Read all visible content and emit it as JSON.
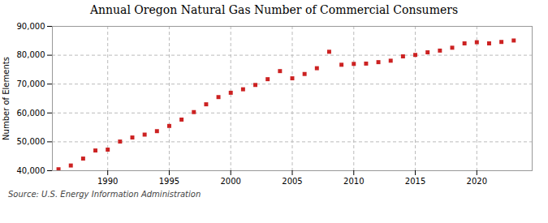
{
  "chart_data": {
    "type": "scatter",
    "title": "Annual Oregon Natural Gas Number of Commercial Consumers",
    "ylabel": "Number of Elements",
    "source": "Source: U.S. Energy Information Administration",
    "x": [
      1986,
      1987,
      1988,
      1989,
      1990,
      1991,
      1992,
      1993,
      1994,
      1995,
      1996,
      1997,
      1998,
      1999,
      2000,
      2001,
      2002,
      2003,
      2004,
      2005,
      2006,
      2007,
      2008,
      2009,
      2010,
      2011,
      2012,
      2013,
      2014,
      2015,
      2016,
      2017,
      2018,
      2019,
      2020,
      2021,
      2022,
      2023
    ],
    "values": [
      40500,
      41800,
      44200,
      47000,
      47300,
      50100,
      51500,
      52500,
      53700,
      55500,
      57700,
      60300,
      63000,
      65500,
      67000,
      68200,
      69700,
      71700,
      74500,
      72000,
      73500,
      75500,
      81200,
      76700,
      77000,
      77100,
      77600,
      78100,
      79600,
      80100,
      81000,
      81600,
      82600,
      84100,
      84500,
      84100,
      84600,
      85100
    ],
    "color": "#cc2222",
    "marker": "square",
    "xlim": [
      1985.5,
      2024.5
    ],
    "xticks": [
      1990,
      1995,
      2000,
      2005,
      2010,
      2015,
      2020
    ],
    "ylim": [
      40000,
      90000
    ],
    "yticks": [
      {
        "value": 40000,
        "label": "40,000"
      },
      {
        "value": 50000,
        "label": "50,000"
      },
      {
        "value": 60000,
        "label": "60,000"
      },
      {
        "value": 70000,
        "label": "70,000"
      },
      {
        "value": 80000,
        "label": "80,000"
      },
      {
        "value": 90000,
        "label": "90,000"
      }
    ],
    "grid": true
  }
}
